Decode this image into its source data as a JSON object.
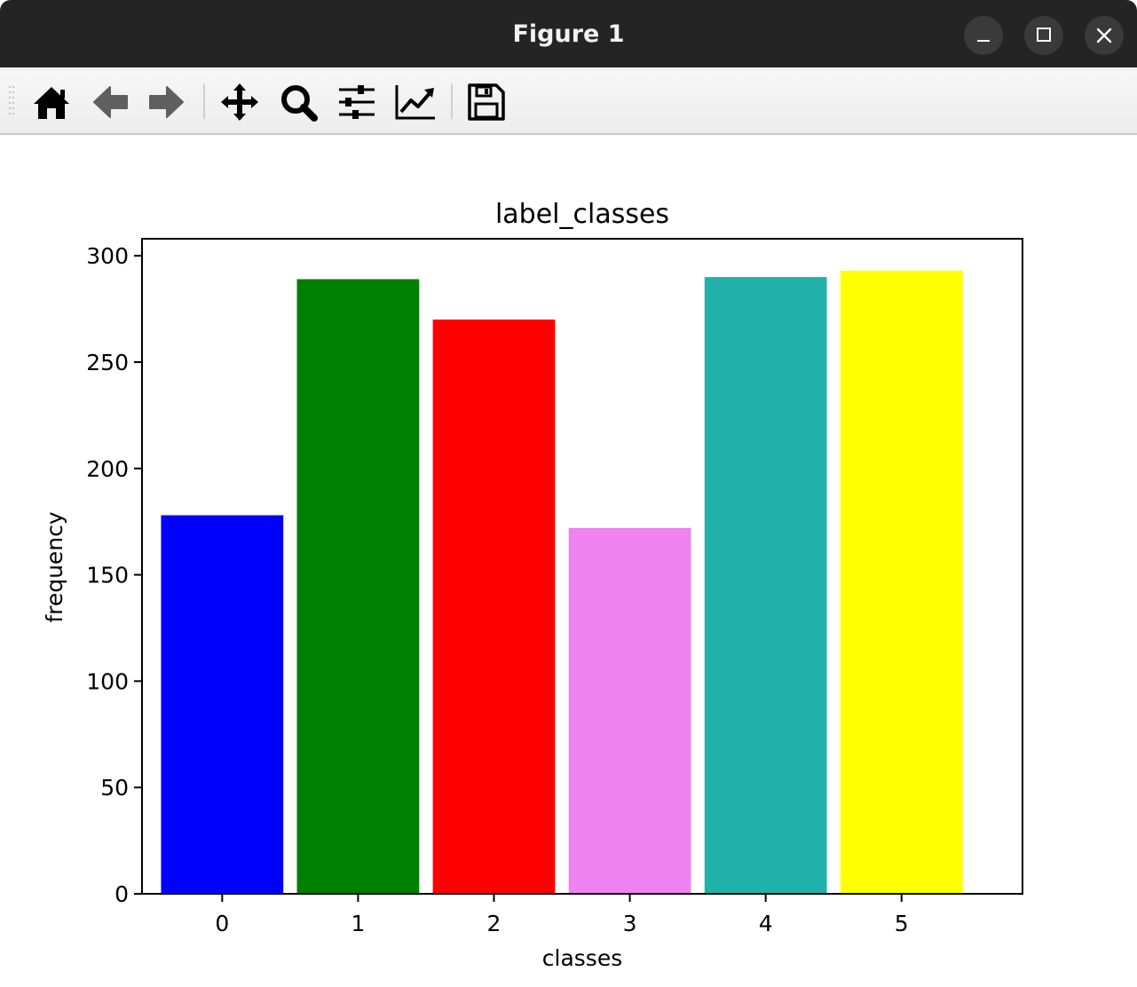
{
  "window": {
    "title": "Figure 1"
  },
  "toolbar": {
    "buttons": [
      {
        "icon": "home-icon",
        "label": "Home"
      },
      {
        "icon": "back-arrow-icon",
        "label": "Back"
      },
      {
        "icon": "forward-arrow-icon",
        "label": "Forward"
      },
      {
        "icon": "pan-move-icon",
        "label": "Pan"
      },
      {
        "icon": "zoom-magnifier-icon",
        "label": "Zoom"
      },
      {
        "icon": "subplots-sliders-icon",
        "label": "Subplots"
      },
      {
        "icon": "edit-axis-chart-icon",
        "label": "Customize"
      },
      {
        "icon": "save-floppy-icon",
        "label": "Save"
      }
    ]
  },
  "chart_data": {
    "type": "bar",
    "title": "label_classes",
    "xlabel": "classes",
    "ylabel": "frequency",
    "categories": [
      "0",
      "1",
      "2",
      "3",
      "4",
      "5"
    ],
    "values": [
      178,
      289,
      270,
      172,
      290,
      293
    ],
    "colors": [
      "#0000ff",
      "#008000",
      "#ff0000",
      "#ee82ee",
      "#20b2aa",
      "#ffff00"
    ],
    "ylim": [
      0,
      308
    ],
    "yticks": [
      0,
      50,
      100,
      150,
      200,
      250,
      300
    ],
    "xlim": [
      -0.59,
      5.89
    ],
    "grid": false
  }
}
